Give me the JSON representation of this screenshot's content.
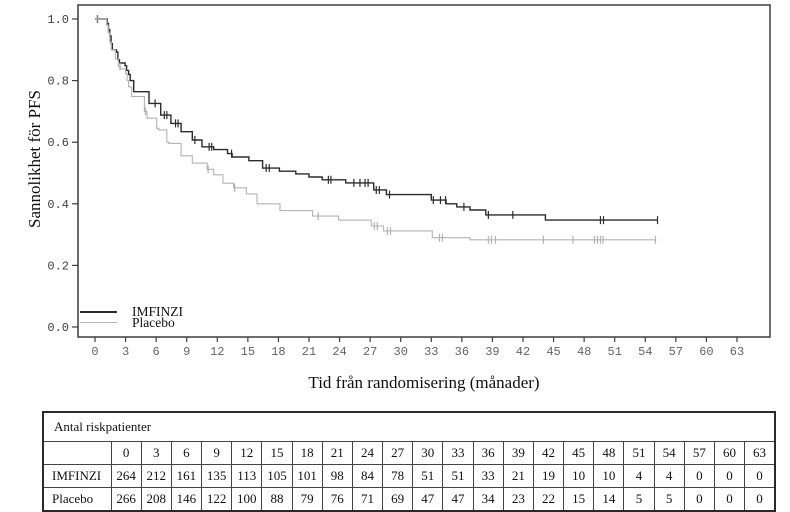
{
  "chart": {
    "y_title": "Sannolikhet för PFS",
    "x_title": "Tid från randomisering (månader)",
    "legend": [
      {
        "label": "IMFINZI",
        "color": "#2b2b2b"
      },
      {
        "label": "Placebo",
        "color": "#b3b3b3"
      }
    ]
  },
  "chart_data": {
    "type": "line",
    "subtype": "kaplan-meier-step",
    "xlabel": "Tid från randomisering (månader)",
    "ylabel": "Sannolikhet för PFS",
    "xlim": [
      0,
      63
    ],
    "ylim": [
      0.0,
      1.0
    ],
    "xticks": [
      0,
      3,
      6,
      9,
      12,
      15,
      18,
      21,
      24,
      27,
      30,
      33,
      36,
      39,
      42,
      45,
      48,
      51,
      54,
      57,
      60,
      63
    ],
    "yticks": [
      0.0,
      0.2,
      0.4,
      0.6,
      0.8,
      1.0
    ],
    "grid": false,
    "legend_position": "lower-left-inside",
    "series": [
      {
        "name": "IMFINZI",
        "color": "#2b2b2b",
        "width": 1.4,
        "steps": [
          [
            0,
            1.0
          ],
          [
            1.1,
            1.0
          ],
          [
            1.2,
            0.985
          ],
          [
            1.32,
            0.965
          ],
          [
            1.45,
            0.945
          ],
          [
            1.58,
            0.92
          ],
          [
            1.7,
            0.9
          ],
          [
            2.1,
            0.893
          ],
          [
            2.25,
            0.868
          ],
          [
            2.4,
            0.857
          ],
          [
            2.95,
            0.848
          ],
          [
            3.1,
            0.833
          ],
          [
            3.3,
            0.82
          ],
          [
            3.45,
            0.8
          ],
          [
            3.8,
            0.764
          ],
          [
            5.3,
            0.726
          ],
          [
            6.45,
            0.688
          ],
          [
            7.45,
            0.661
          ],
          [
            8.45,
            0.634
          ],
          [
            9.55,
            0.607
          ],
          [
            10.5,
            0.585
          ],
          [
            11.65,
            0.576
          ],
          [
            13.0,
            0.563
          ],
          [
            13.45,
            0.552
          ],
          [
            15.1,
            0.54
          ],
          [
            16.45,
            0.516
          ],
          [
            18.1,
            0.506
          ],
          [
            19.7,
            0.497
          ],
          [
            21.0,
            0.487
          ],
          [
            22.3,
            0.478
          ],
          [
            24.6,
            0.468
          ],
          [
            27.35,
            0.445
          ],
          [
            28.6,
            0.43
          ],
          [
            33.0,
            0.412
          ],
          [
            34.45,
            0.4
          ],
          [
            35.5,
            0.39
          ],
          [
            36.8,
            0.38
          ],
          [
            38.35,
            0.364
          ],
          [
            44.2,
            0.347
          ],
          [
            55.2,
            0.347
          ]
        ],
        "censor_months": [
          0.25,
          5.9,
          6.8,
          7.05,
          7.9,
          8.15,
          9.8,
          11.2,
          11.45,
          13.4,
          16.8,
          17.1,
          22.9,
          23.15,
          25.4,
          26.0,
          26.5,
          26.8,
          27.6,
          27.9,
          28.9,
          33.2,
          33.9,
          34.4,
          36.2,
          38.6,
          41.0,
          49.6,
          49.9,
          55.2
        ]
      },
      {
        "name": "Placebo",
        "color": "#b3b3b3",
        "width": 1.1,
        "steps": [
          [
            0,
            1.0
          ],
          [
            1.05,
            1.0
          ],
          [
            1.15,
            0.98
          ],
          [
            1.3,
            0.955
          ],
          [
            1.45,
            0.925
          ],
          [
            1.6,
            0.9
          ],
          [
            2.0,
            0.87
          ],
          [
            2.3,
            0.845
          ],
          [
            2.5,
            0.838
          ],
          [
            3.0,
            0.822
          ],
          [
            3.15,
            0.8
          ],
          [
            3.3,
            0.78
          ],
          [
            3.6,
            0.748
          ],
          [
            4.85,
            0.7
          ],
          [
            5.1,
            0.678
          ],
          [
            6.05,
            0.645
          ],
          [
            6.25,
            0.64
          ],
          [
            7.05,
            0.6
          ],
          [
            7.25,
            0.596
          ],
          [
            8.45,
            0.556
          ],
          [
            9.55,
            0.532
          ],
          [
            11.0,
            0.512
          ],
          [
            11.65,
            0.494
          ],
          [
            12.55,
            0.467
          ],
          [
            13.6,
            0.452
          ],
          [
            14.85,
            0.432
          ],
          [
            15.9,
            0.4
          ],
          [
            18.15,
            0.378
          ],
          [
            21.35,
            0.36
          ],
          [
            23.9,
            0.347
          ],
          [
            27.1,
            0.328
          ],
          [
            28.3,
            0.312
          ],
          [
            33.1,
            0.29
          ],
          [
            36.8,
            0.283
          ],
          [
            55.0,
            0.283
          ]
        ],
        "censor_months": [
          0.2,
          2.45,
          4.95,
          11.1,
          13.7,
          21.9,
          27.4,
          27.7,
          28.7,
          29.0,
          33.8,
          34.1,
          38.6,
          38.9,
          39.3,
          44.0,
          46.9,
          49.0,
          49.3,
          49.6,
          49.85,
          55.0
        ]
      }
    ]
  },
  "risk_table": {
    "caption": "Antal riskpatienter",
    "time_points": [
      0,
      3,
      6,
      9,
      12,
      15,
      18,
      21,
      24,
      27,
      30,
      33,
      36,
      39,
      42,
      45,
      48,
      51,
      54,
      57,
      60,
      63
    ],
    "rows": [
      {
        "label": "IMFINZI",
        "values": [
          264,
          212,
          161,
          135,
          113,
          105,
          101,
          98,
          84,
          78,
          51,
          51,
          33,
          21,
          19,
          10,
          10,
          4,
          4,
          0,
          0,
          0
        ]
      },
      {
        "label": "Placebo",
        "values": [
          266,
          208,
          146,
          122,
          100,
          88,
          79,
          76,
          71,
          69,
          47,
          47,
          34,
          23,
          22,
          15,
          14,
          5,
          5,
          0,
          0,
          0
        ]
      }
    ]
  }
}
